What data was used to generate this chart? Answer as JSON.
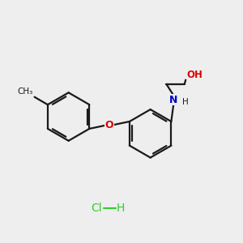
{
  "bg_color": "#eeeeee",
  "bond_color": "#1a1a1a",
  "O_color": "#dd0000",
  "N_color": "#0000cc",
  "Cl_color": "#33cc33",
  "lw": 1.6,
  "figsize": [
    3.0,
    3.0
  ],
  "dpi": 100,
  "xlim": [
    0,
    10
  ],
  "ylim": [
    0,
    10
  ]
}
